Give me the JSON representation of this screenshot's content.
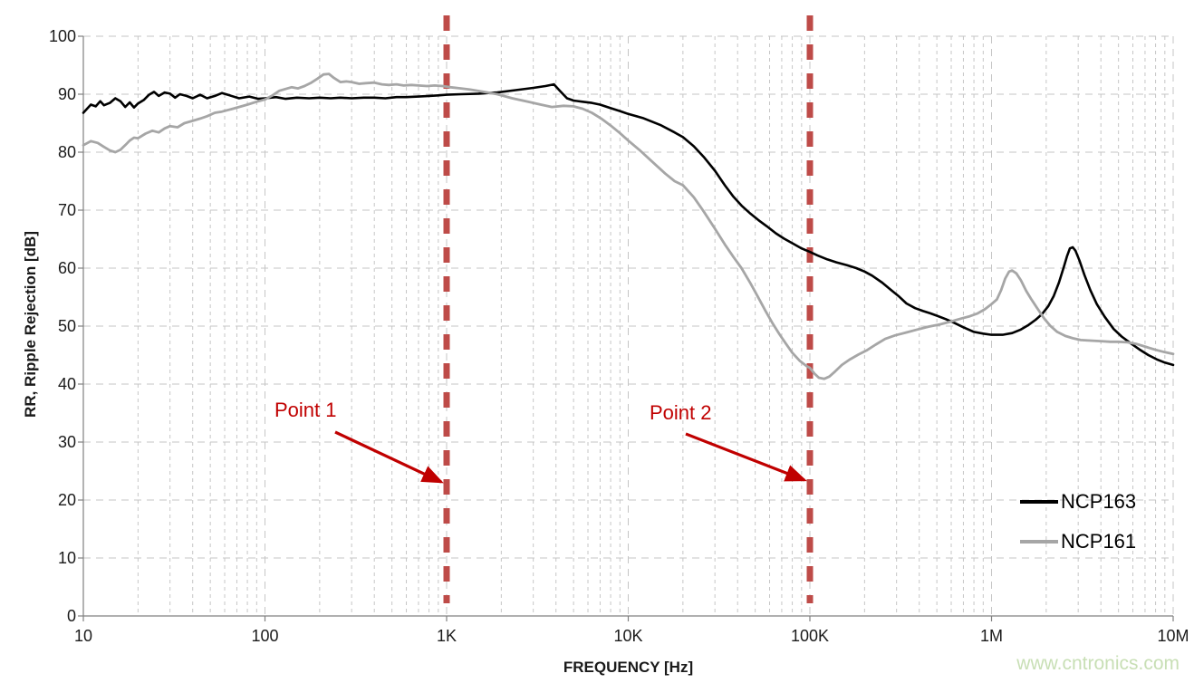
{
  "chart_data": {
    "type": "line",
    "title": "",
    "xlabel": "FREQUENCY [Hz]",
    "ylabel": "RR, Ripple Rejection [dB]",
    "x_scale": "log",
    "xlim": [
      10,
      10000000
    ],
    "ylim": [
      0,
      100
    ],
    "grid": "dashed light-gray, horizontal every 10 dB, vertical log minor+major",
    "grid_color": "#C6C6C6",
    "axis_color": "#808080",
    "legend_position": "inside lower right",
    "x_ticks": [
      {
        "value": 10,
        "label": "10"
      },
      {
        "value": 100,
        "label": "100"
      },
      {
        "value": 1000,
        "label": "1K"
      },
      {
        "value": 10000,
        "label": "10K"
      },
      {
        "value": 100000,
        "label": "100K"
      },
      {
        "value": 1000000,
        "label": "1M"
      },
      {
        "value": 10000000,
        "label": "10M"
      }
    ],
    "y_ticks": [
      {
        "value": 0,
        "label": "0"
      },
      {
        "value": 10,
        "label": "10"
      },
      {
        "value": 20,
        "label": "20"
      },
      {
        "value": 30,
        "label": "30"
      },
      {
        "value": 40,
        "label": "40"
      },
      {
        "value": 50,
        "label": "50"
      },
      {
        "value": 60,
        "label": "60"
      },
      {
        "value": 70,
        "label": "70"
      },
      {
        "value": 80,
        "label": "80"
      },
      {
        "value": 90,
        "label": "90"
      },
      {
        "value": 100,
        "label": "100"
      }
    ],
    "marker_lines": [
      {
        "label": "Point 1",
        "x_hz": 1000
      },
      {
        "label": "Point 2",
        "x_hz": 100000
      }
    ],
    "series": [
      {
        "name": "NCP163",
        "color": "#000000",
        "points": [
          [
            10,
            86.8
          ],
          [
            11,
            88.2
          ],
          [
            11.7,
            87.9
          ],
          [
            12.4,
            88.8
          ],
          [
            13,
            88.1
          ],
          [
            14,
            88.5
          ],
          [
            15,
            89.3
          ],
          [
            16,
            88.8
          ],
          [
            17,
            87.8
          ],
          [
            18,
            88.6
          ],
          [
            19,
            87.7
          ],
          [
            20,
            88.4
          ],
          [
            21.5,
            89.0
          ],
          [
            23,
            89.9
          ],
          [
            24.5,
            90.4
          ],
          [
            26,
            89.7
          ],
          [
            28,
            90.3
          ],
          [
            30,
            90.1
          ],
          [
            32,
            89.4
          ],
          [
            34,
            90.0
          ],
          [
            37,
            89.7
          ],
          [
            40,
            89.3
          ],
          [
            44,
            89.9
          ],
          [
            48,
            89.3
          ],
          [
            53,
            89.7
          ],
          [
            58,
            90.2
          ],
          [
            64,
            89.8
          ],
          [
            72,
            89.3
          ],
          [
            82,
            89.6
          ],
          [
            92,
            89.2
          ],
          [
            100,
            89.3
          ],
          [
            115,
            89.5
          ],
          [
            130,
            89.2
          ],
          [
            150,
            89.4
          ],
          [
            175,
            89.3
          ],
          [
            200,
            89.4
          ],
          [
            230,
            89.3
          ],
          [
            260,
            89.4
          ],
          [
            300,
            89.3
          ],
          [
            350,
            89.4
          ],
          [
            400,
            89.4
          ],
          [
            460,
            89.3
          ],
          [
            530,
            89.5
          ],
          [
            600,
            89.5
          ],
          [
            700,
            89.6
          ],
          [
            800,
            89.7
          ],
          [
            900,
            89.8
          ],
          [
            1000,
            89.9
          ],
          [
            1200,
            90.0
          ],
          [
            1500,
            90.1
          ],
          [
            1900,
            90.3
          ],
          [
            2400,
            90.7
          ],
          [
            3000,
            91.1
          ],
          [
            3500,
            91.4
          ],
          [
            3900,
            91.7
          ],
          [
            4200,
            90.6
          ],
          [
            4600,
            89.3
          ],
          [
            5000,
            88.9
          ],
          [
            5600,
            88.7
          ],
          [
            6300,
            88.5
          ],
          [
            7000,
            88.2
          ],
          [
            8000,
            87.6
          ],
          [
            9000,
            87.1
          ],
          [
            10000,
            86.6
          ],
          [
            12000,
            85.9
          ],
          [
            15000,
            84.7
          ],
          [
            18000,
            83.4
          ],
          [
            20000,
            82.6
          ],
          [
            23000,
            81.0
          ],
          [
            26000,
            79.2
          ],
          [
            30000,
            76.8
          ],
          [
            34000,
            74.3
          ],
          [
            38000,
            72.3
          ],
          [
            42000,
            70.8
          ],
          [
            47000,
            69.4
          ],
          [
            52000,
            68.3
          ],
          [
            58000,
            67.2
          ],
          [
            65000,
            66.0
          ],
          [
            72000,
            65.1
          ],
          [
            80000,
            64.3
          ],
          [
            90000,
            63.4
          ],
          [
            100000,
            62.8
          ],
          [
            110000,
            62.2
          ],
          [
            125000,
            61.5
          ],
          [
            140000,
            61.0
          ],
          [
            160000,
            60.5
          ],
          [
            180000,
            60.0
          ],
          [
            200000,
            59.4
          ],
          [
            220000,
            58.7
          ],
          [
            250000,
            57.5
          ],
          [
            280000,
            56.2
          ],
          [
            310000,
            55.1
          ],
          [
            340000,
            53.9
          ],
          [
            380000,
            53.1
          ],
          [
            420000,
            52.6
          ],
          [
            460000,
            52.2
          ],
          [
            500000,
            51.8
          ],
          [
            560000,
            51.2
          ],
          [
            620000,
            50.6
          ],
          [
            700000,
            49.8
          ],
          [
            800000,
            49.0
          ],
          [
            900000,
            48.7
          ],
          [
            1000000,
            48.5
          ],
          [
            1150000,
            48.5
          ],
          [
            1300000,
            48.8
          ],
          [
            1450000,
            49.4
          ],
          [
            1600000,
            50.2
          ],
          [
            1750000,
            51.1
          ],
          [
            1900000,
            52.1
          ],
          [
            2050000,
            53.4
          ],
          [
            2200000,
            55.2
          ],
          [
            2350000,
            57.5
          ],
          [
            2500000,
            60.2
          ],
          [
            2600000,
            62.0
          ],
          [
            2700000,
            63.4
          ],
          [
            2800000,
            63.6
          ],
          [
            2900000,
            63.0
          ],
          [
            3050000,
            61.3
          ],
          [
            3250000,
            58.8
          ],
          [
            3500000,
            56.2
          ],
          [
            3800000,
            53.8
          ],
          [
            4200000,
            51.6
          ],
          [
            4700000,
            49.5
          ],
          [
            5200000,
            48.2
          ],
          [
            5800000,
            47.1
          ],
          [
            6500000,
            46.0
          ],
          [
            7300000,
            45.0
          ],
          [
            8200000,
            44.2
          ],
          [
            9000000,
            43.7
          ],
          [
            10000000,
            43.3
          ]
        ]
      },
      {
        "name": "NCP161",
        "color": "#A6A6A6",
        "points": [
          [
            10,
            81.2
          ],
          [
            11,
            81.9
          ],
          [
            12,
            81.6
          ],
          [
            13,
            80.9
          ],
          [
            14,
            80.3
          ],
          [
            15,
            80.0
          ],
          [
            16,
            80.4
          ],
          [
            17,
            81.2
          ],
          [
            18,
            82.0
          ],
          [
            19,
            82.5
          ],
          [
            20,
            82.4
          ],
          [
            22,
            83.2
          ],
          [
            24,
            83.7
          ],
          [
            26,
            83.4
          ],
          [
            28,
            84.1
          ],
          [
            30,
            84.5
          ],
          [
            33,
            84.3
          ],
          [
            36,
            85.0
          ],
          [
            40,
            85.4
          ],
          [
            44,
            85.8
          ],
          [
            48,
            86.2
          ],
          [
            53,
            86.8
          ],
          [
            58,
            87.0
          ],
          [
            65,
            87.4
          ],
          [
            72,
            87.8
          ],
          [
            80,
            88.2
          ],
          [
            90,
            88.7
          ],
          [
            100,
            89.1
          ],
          [
            110,
            89.8
          ],
          [
            120,
            90.6
          ],
          [
            130,
            90.9
          ],
          [
            140,
            91.2
          ],
          [
            152,
            91.0
          ],
          [
            165,
            91.4
          ],
          [
            180,
            92.0
          ],
          [
            195,
            92.7
          ],
          [
            210,
            93.4
          ],
          [
            225,
            93.5
          ],
          [
            240,
            92.8
          ],
          [
            260,
            92.1
          ],
          [
            280,
            92.2
          ],
          [
            300,
            92.1
          ],
          [
            330,
            91.8
          ],
          [
            360,
            91.9
          ],
          [
            400,
            92.0
          ],
          [
            440,
            91.7
          ],
          [
            480,
            91.6
          ],
          [
            530,
            91.7
          ],
          [
            580,
            91.5
          ],
          [
            640,
            91.6
          ],
          [
            700,
            91.5
          ],
          [
            780,
            91.4
          ],
          [
            860,
            91.5
          ],
          [
            950,
            91.4
          ],
          [
            1050,
            91.2
          ],
          [
            1200,
            91.0
          ],
          [
            1350,
            90.8
          ],
          [
            1600,
            90.4
          ],
          [
            1900,
            90.0
          ],
          [
            2300,
            89.3
          ],
          [
            2800,
            88.7
          ],
          [
            3300,
            88.2
          ],
          [
            3800,
            87.8
          ],
          [
            4400,
            88.0
          ],
          [
            5000,
            87.9
          ],
          [
            5600,
            87.5
          ],
          [
            6300,
            86.8
          ],
          [
            7100,
            85.8
          ],
          [
            8000,
            84.6
          ],
          [
            9000,
            83.3
          ],
          [
            10000,
            82.0
          ],
          [
            11500,
            80.4
          ],
          [
            13500,
            78.4
          ],
          [
            16000,
            76.3
          ],
          [
            18000,
            75.0
          ],
          [
            20000,
            74.3
          ],
          [
            23000,
            72.2
          ],
          [
            26000,
            69.8
          ],
          [
            30000,
            66.8
          ],
          [
            34000,
            64.1
          ],
          [
            38000,
            61.9
          ],
          [
            42000,
            60.0
          ],
          [
            47000,
            57.4
          ],
          [
            52000,
            54.9
          ],
          [
            57000,
            52.6
          ],
          [
            62000,
            50.6
          ],
          [
            68000,
            48.6
          ],
          [
            74000,
            46.9
          ],
          [
            80000,
            45.4
          ],
          [
            88000,
            44.0
          ],
          [
            96000,
            43.1
          ],
          [
            100000,
            42.8
          ],
          [
            106000,
            41.8
          ],
          [
            112000,
            41.1
          ],
          [
            120000,
            40.9
          ],
          [
            128000,
            41.3
          ],
          [
            138000,
            42.2
          ],
          [
            150000,
            43.3
          ],
          [
            165000,
            44.2
          ],
          [
            185000,
            45.1
          ],
          [
            205000,
            45.8
          ],
          [
            230000,
            46.8
          ],
          [
            260000,
            47.8
          ],
          [
            295000,
            48.4
          ],
          [
            340000,
            48.9
          ],
          [
            390000,
            49.4
          ],
          [
            450000,
            49.9
          ],
          [
            520000,
            50.3
          ],
          [
            600000,
            50.8
          ],
          [
            680000,
            51.3
          ],
          [
            760000,
            51.7
          ],
          [
            840000,
            52.2
          ],
          [
            920000,
            52.9
          ],
          [
            1000000,
            53.8
          ],
          [
            1070000,
            54.6
          ],
          [
            1130000,
            56.2
          ],
          [
            1190000,
            58.2
          ],
          [
            1250000,
            59.4
          ],
          [
            1300000,
            59.6
          ],
          [
            1370000,
            59.1
          ],
          [
            1450000,
            57.9
          ],
          [
            1550000,
            56.1
          ],
          [
            1650000,
            54.7
          ],
          [
            1800000,
            52.9
          ],
          [
            1950000,
            51.3
          ],
          [
            2100000,
            50.1
          ],
          [
            2300000,
            49.0
          ],
          [
            2550000,
            48.3
          ],
          [
            2800000,
            47.9
          ],
          [
            3100000,
            47.6
          ],
          [
            3500000,
            47.5
          ],
          [
            4000000,
            47.4
          ],
          [
            4500000,
            47.3
          ],
          [
            5000000,
            47.3
          ],
          [
            5600000,
            47.2
          ],
          [
            6300000,
            46.9
          ],
          [
            7100000,
            46.4
          ],
          [
            8000000,
            45.9
          ],
          [
            9000000,
            45.5
          ],
          [
            10000000,
            45.2
          ]
        ]
      }
    ]
  },
  "annotations": {
    "point1_label": "Point 1",
    "point2_label": "Point 2",
    "text_color": "#C00000",
    "arrow_color": "#C00000",
    "marker_line_color": "#BE4B48"
  },
  "legend": {
    "items": [
      {
        "label": "NCP163",
        "color": "#000000"
      },
      {
        "label": "NCP161",
        "color": "#A6A6A6"
      }
    ]
  },
  "watermark": {
    "text": "www.cntronics.com",
    "color": "#C8DFB5"
  }
}
